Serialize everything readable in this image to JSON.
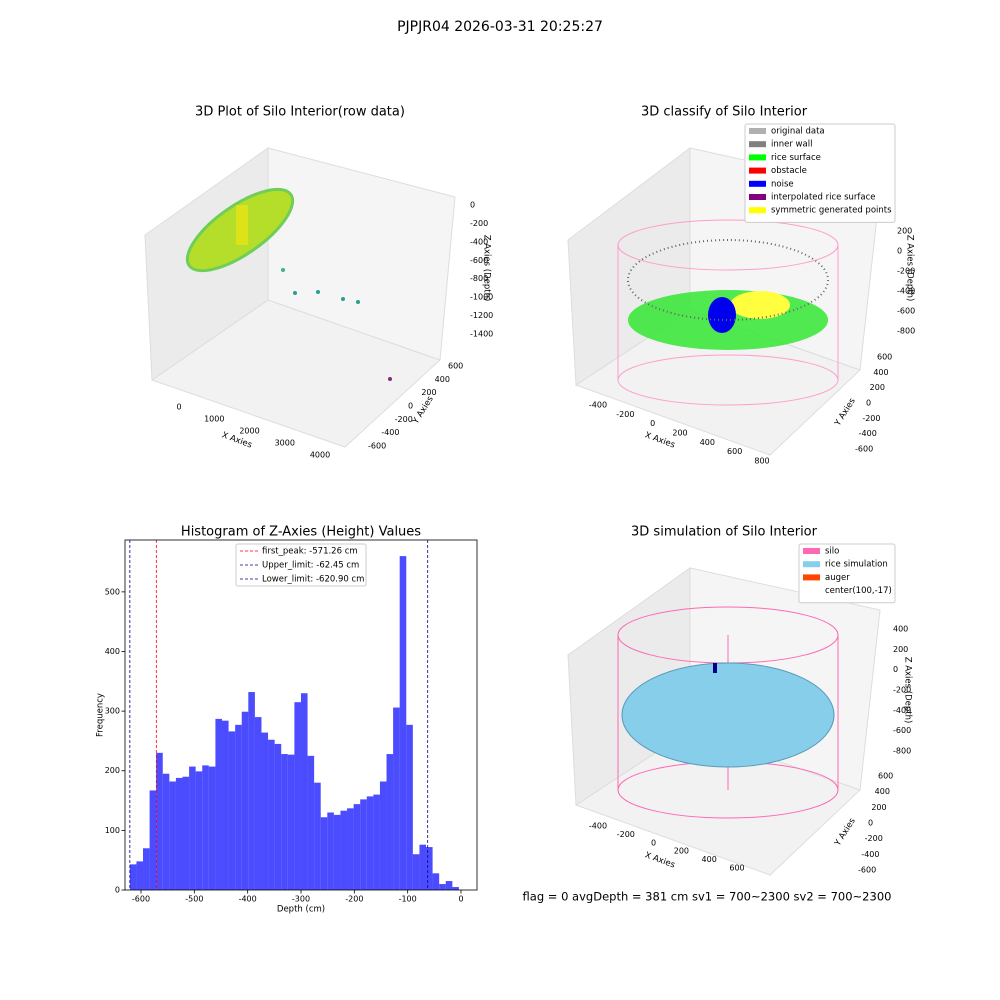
{
  "suptitle": "PJPJR04 2026-03-31 20:25:27",
  "status_text": "flag = 0     avgDepth = 381 cm  sv1 = 700~2300  sv2 = 700~2300",
  "chart_data": [
    {
      "type": "scatter3d",
      "title": "3D Plot of Silo Interior(row data)",
      "xlabel": "X Axies",
      "ylabel": "Y Axies",
      "zlabel": "Z Axies (Depth)",
      "xticks": [
        0,
        1000,
        2000,
        3000,
        4000
      ],
      "yticks": [
        -600,
        -400,
        -200,
        0,
        200,
        400,
        600
      ],
      "zticks": [
        0,
        -200,
        -400,
        -600,
        -800,
        -1000,
        -1200,
        -1400
      ]
    },
    {
      "type": "scatter3d",
      "title": "3D classify of Silo Interior",
      "xlabel": "X Axies",
      "ylabel": "Y Axies",
      "zlabel": "Z Axies (Depth)",
      "xticks": [
        -400,
        -200,
        0,
        200,
        400,
        600,
        800
      ],
      "yticks": [
        -600,
        -400,
        -200,
        0,
        200,
        400,
        600
      ],
      "zticks": [
        200,
        0,
        -200,
        -400,
        -600,
        -800
      ],
      "legend": [
        {
          "name": "original data",
          "color": "#b0b0b0"
        },
        {
          "name": "inner wall",
          "color": "#808080"
        },
        {
          "name": "rice surface",
          "color": "#00ff00"
        },
        {
          "name": "obstacle",
          "color": "#ff0000"
        },
        {
          "name": "noise",
          "color": "#0000ff"
        },
        {
          "name": "interpolated rice surface",
          "color": "#800080"
        },
        {
          "name": "symmetric generated points",
          "color": "#ffff00"
        }
      ]
    },
    {
      "type": "histogram",
      "title": "Histogram of Z-Axies (Height) Values",
      "xlabel": "Depth (cm)",
      "ylabel": "Frequency",
      "color": "#0000ff",
      "bins": [
        -620.9,
        -608.56,
        -596.22,
        -583.88,
        -571.54,
        -559.2,
        -546.86,
        -534.52,
        -522.18,
        -509.84,
        -497.5,
        -485.16,
        -472.82,
        -460.48,
        -448.14,
        -435.8,
        -423.46,
        -411.12,
        -398.78,
        -386.44,
        -374.1,
        -361.76,
        -349.42,
        -337.08,
        -324.74,
        -312.4,
        -300.06,
        -287.72,
        -275.38,
        -263.04,
        -250.7,
        -238.36,
        -226.02,
        -213.68,
        -201.34,
        -189.0,
        -176.66,
        -164.32,
        -151.98,
        -139.64,
        -127.3,
        -114.96,
        -102.62,
        -90.28,
        -77.94,
        -65.6,
        -53.26,
        -40.92,
        -28.58,
        -16.24,
        -3.9
      ],
      "counts": [
        43,
        48,
        70,
        167,
        230,
        195,
        182,
        188,
        190,
        207,
        199,
        209,
        207,
        287,
        284,
        266,
        277,
        299,
        332,
        290,
        264,
        252,
        245,
        228,
        227,
        315,
        330,
        225,
        180,
        122,
        130,
        126,
        133,
        137,
        144,
        152,
        157,
        160,
        182,
        228,
        306,
        560,
        277,
        60,
        76,
        72,
        28,
        10,
        15,
        5
      ],
      "lines": [
        {
          "name": "first_peak",
          "value": -571.26,
          "label": "first_peak: -571.26 cm",
          "color": "#ff0000"
        },
        {
          "name": "Upper_limit",
          "value": -62.45,
          "label": "Upper_limit: -62.45 cm",
          "color": "#00008b"
        },
        {
          "name": "Lower_limit",
          "value": -620.9,
          "label": "Lower_limit: -620.90 cm",
          "color": "#00008b"
        }
      ],
      "xlim": [
        -630,
        30
      ],
      "ylim": [
        0,
        587
      ],
      "xticks": [
        -600,
        -500,
        -400,
        -300,
        -200,
        -100,
        0
      ],
      "yticks": [
        0,
        100,
        200,
        300,
        400,
        500
      ]
    },
    {
      "type": "scatter3d",
      "title": "3D simulation of Silo Interior",
      "xlabel": "X Axies",
      "ylabel": "Y Axies",
      "zlabel": "Z Axies (Depth)",
      "xticks": [
        -400,
        -200,
        0,
        200,
        400,
        600
      ],
      "yticks": [
        -600,
        -400,
        -200,
        0,
        200,
        400,
        600
      ],
      "zticks": [
        400,
        200,
        0,
        -200,
        -400,
        -600,
        -800
      ],
      "legend": [
        {
          "name": "silo",
          "color": "#ff69b4"
        },
        {
          "name": "rice simulation",
          "color": "#87ceeb"
        },
        {
          "name": "auger",
          "color": "#ff4500"
        },
        {
          "name": "center(100,-17)",
          "color": "none"
        }
      ]
    }
  ]
}
